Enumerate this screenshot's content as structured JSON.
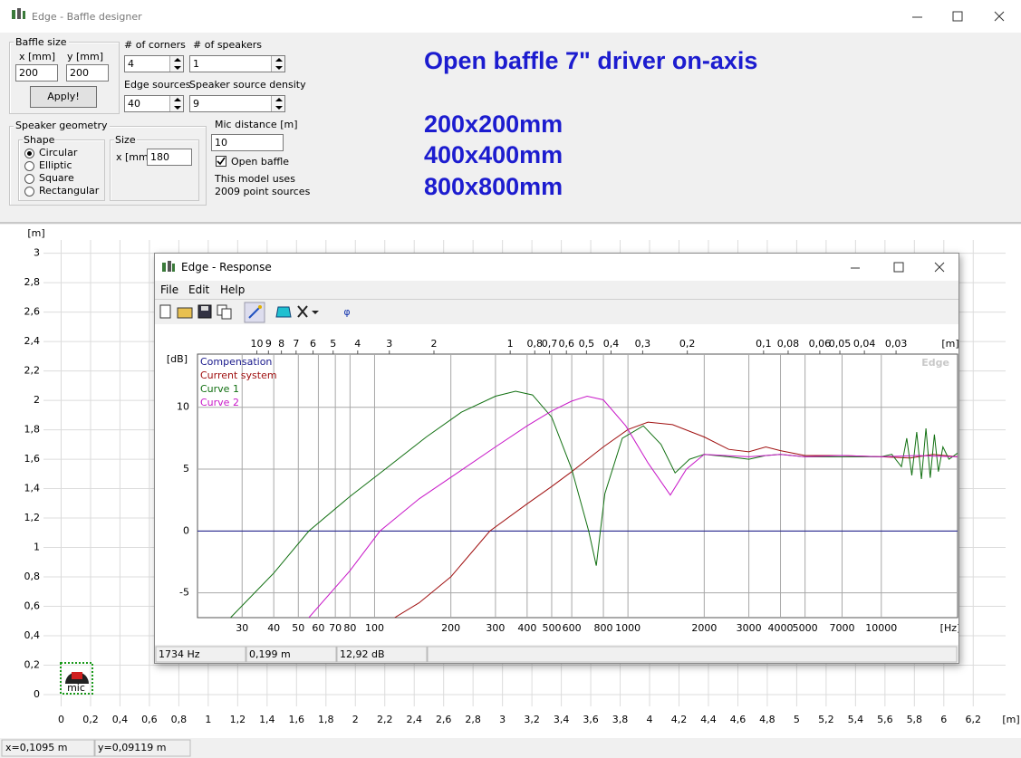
{
  "window": {
    "title": "Edge - Baffle designer"
  },
  "panel": {
    "baffle_size": {
      "label": "Baffle size",
      "x_label": "x [mm]",
      "y_label": "y [mm]",
      "x": 200,
      "y": 200,
      "button": "Apply!"
    },
    "corners": {
      "label": "# of corners",
      "value": 4
    },
    "speakers": {
      "label": "# of speakers",
      "value": 1
    },
    "edge_sources": {
      "label": "Edge sources",
      "value": 40
    },
    "source_density": {
      "label": "Speaker source density",
      "value": 9
    },
    "speaker_geometry": {
      "label": "Speaker geometry",
      "shape_label": "Shape",
      "shapes": [
        {
          "label": "Circular",
          "checked": true
        },
        {
          "label": "Elliptic",
          "checked": false
        },
        {
          "label": "Square",
          "checked": false
        },
        {
          "label": "Rectangular",
          "checked": false
        }
      ],
      "size_label": "Size",
      "size_x_label": "x [mm]",
      "size_x": 180
    },
    "mic_distance": {
      "label": "Mic distance [m]",
      "value": 10
    },
    "open_baffle": {
      "label": "Open baffle",
      "checked": true
    },
    "model_info": [
      "This model uses",
      "2009 point sources"
    ]
  },
  "notes": {
    "heading": "Open baffle 7\" driver on-axis",
    "sizes": [
      "200x200mm",
      "400x400mm",
      "800x800mm"
    ]
  },
  "layout_plot": {
    "xlim": [
      -0.12,
      6.42
    ],
    "ylim": [
      -0.08,
      3.09
    ],
    "xticks": [
      0,
      {
        "value": 0.2,
        "label": "0,2"
      },
      {
        "value": 0.4,
        "label": "0,4"
      },
      {
        "value": 0.6,
        "label": "0,6"
      },
      {
        "value": 0.8,
        "label": "0,8"
      },
      1,
      {
        "value": 1.2,
        "label": "1,2"
      },
      {
        "value": 1.4,
        "label": "1,4"
      },
      {
        "value": 1.6,
        "label": "1,6"
      },
      {
        "value": 1.8,
        "label": "1,8"
      },
      2,
      {
        "value": 2.2,
        "label": "2,2"
      },
      {
        "value": 2.4,
        "label": "2,4"
      },
      {
        "value": 2.6,
        "label": "2,6"
      },
      {
        "value": 2.8,
        "label": "2,8"
      },
      3,
      {
        "value": 3.2,
        "label": "3,2"
      },
      {
        "value": 3.4,
        "label": "3,4"
      },
      {
        "value": 3.6,
        "label": "3,6"
      },
      {
        "value": 3.8,
        "label": "3,8"
      },
      4,
      {
        "value": 4.2,
        "label": "4,2"
      },
      {
        "value": 4.4,
        "label": "4,4"
      },
      {
        "value": 4.6,
        "label": "4,6"
      },
      {
        "value": 4.8,
        "label": "4,8"
      },
      5,
      {
        "value": 5.2,
        "label": "5,2"
      },
      {
        "value": 5.4,
        "label": "5,4"
      },
      {
        "value": 5.6,
        "label": "5,6"
      },
      {
        "value": 5.8,
        "label": "5,8"
      },
      6,
      {
        "value": 6.2,
        "label": "6,2"
      }
    ],
    "yticks": [
      0,
      {
        "value": 0.2,
        "label": "0,2"
      },
      {
        "value": 0.4,
        "label": "0,4"
      },
      {
        "value": 0.6,
        "label": "0,6"
      },
      {
        "value": 0.8,
        "label": "0,8"
      },
      1,
      {
        "value": 1.2,
        "label": "1,2"
      },
      {
        "value": 1.4,
        "label": "1,4"
      },
      {
        "value": 1.6,
        "label": "1,6"
      },
      {
        "value": 1.8,
        "label": "1,8"
      },
      2,
      {
        "value": 2.2,
        "label": "2,2"
      },
      {
        "value": 2.4,
        "label": "2,4"
      },
      {
        "value": 2.6,
        "label": "2,6"
      },
      {
        "value": 2.8,
        "label": "2,8"
      },
      3
    ],
    "x_unit": "[m]",
    "y_unit": "[m]",
    "mic_label": "mic"
  },
  "response_window": {
    "title": "Edge - Response",
    "menu": [
      "File",
      "Edit",
      "Help"
    ],
    "phase_button": "φ",
    "status": [
      "1734 Hz",
      "0,199 m",
      "12,92 dB"
    ]
  },
  "chart_data": {
    "type": "line",
    "x_scale": "log",
    "xlim": [
      20,
      20000
    ],
    "ylim": [
      -7,
      14.3
    ],
    "xticks": [
      30,
      40,
      50,
      60,
      70,
      80,
      100,
      200,
      300,
      400,
      500,
      600,
      800,
      1000,
      2000,
      3000,
      4000,
      5000,
      7000,
      10000
    ],
    "yticks": [
      -5,
      0,
      5,
      10
    ],
    "x2lim": [
      17.15,
      0.01715
    ],
    "x2ticks": [
      10,
      9,
      8,
      7,
      6,
      5,
      4,
      3,
      2,
      1,
      {
        "value": 0.8,
        "label": "0,8"
      },
      {
        "value": 0.7,
        "label": "0,7"
      },
      {
        "value": 0.6,
        "label": "0,6"
      },
      {
        "value": 0.5,
        "label": "0,5"
      },
      {
        "value": 0.4,
        "label": "0,4"
      },
      {
        "value": 0.3,
        "label": "0,3"
      },
      {
        "value": 0.2,
        "label": "0,2"
      },
      {
        "value": 0.1,
        "label": "0,1"
      },
      {
        "value": 0.08,
        "label": "0,08"
      },
      {
        "value": 0.06,
        "label": "0,06"
      },
      {
        "value": 0.05,
        "label": "0,05"
      },
      {
        "value": 0.04,
        "label": "0,04"
      },
      {
        "value": 0.03,
        "label": "0,03"
      }
    ],
    "x_unit": "[Hz]",
    "y_unit": "[dB]",
    "x2_unit": "[m]",
    "watermark": "Edge",
    "grid": true,
    "series": [
      {
        "name": "Compensation",
        "color": "#1a1a8c",
        "x": [
          20,
          20000
        ],
        "values": [
          0,
          0
        ]
      },
      {
        "name": "Current system",
        "color": "#a01010",
        "x": [
          120,
          150,
          200,
          285,
          400,
          500,
          600,
          800,
          1000,
          1200,
          1500,
          2000,
          2500,
          3000,
          3500,
          4000,
          5000,
          7000,
          10000,
          13000,
          16000,
          20000
        ],
        "values": [
          -7,
          -5.8,
          -3.7,
          0,
          2.2,
          3.6,
          4.8,
          6.8,
          8.2,
          8.8,
          8.6,
          7.6,
          6.6,
          6.4,
          6.8,
          6.5,
          6.1,
          6.1,
          6,
          5.9,
          6.2,
          6
        ]
      },
      {
        "name": "Curve 1",
        "color": "#127012",
        "x": [
          27,
          40,
          55,
          80,
          110,
          160,
          220,
          300,
          360,
          420,
          500,
          600,
          700,
          750,
          810,
          950,
          1150,
          1350,
          1535,
          1750,
          2000,
          2500,
          3000,
          3500,
          4000,
          5000,
          7000,
          10000,
          11000,
          12000,
          12600,
          13200,
          13800,
          14400,
          15000,
          15600,
          16200,
          16800,
          17500,
          18500,
          20000
        ],
        "values": [
          -7,
          -3.4,
          0,
          2.8,
          5,
          7.6,
          9.6,
          10.9,
          11.3,
          11,
          9.2,
          5,
          0,
          -2.8,
          3,
          7.5,
          8.5,
          7,
          4.7,
          5.8,
          6.2,
          6,
          5.8,
          6.1,
          6.2,
          6,
          6,
          6,
          6.2,
          5.2,
          7.5,
          4.5,
          8,
          4.2,
          8.3,
          4.3,
          7.8,
          4.8,
          6.8,
          5.8,
          6.3
        ]
      },
      {
        "name": "Curve 2",
        "color": "#c818c8",
        "x": [
          55,
          80,
          105,
          150,
          223,
          300,
          400,
          500,
          600,
          690,
          800,
          980,
          1200,
          1470,
          1700,
          2000,
          3000,
          4000,
          5000,
          7000,
          10000,
          14000,
          20000
        ],
        "values": [
          -7,
          -3.2,
          0,
          2.6,
          5,
          6.8,
          8.5,
          9.7,
          10.5,
          10.9,
          10.6,
          8.5,
          5.5,
          2.9,
          5,
          6.2,
          6,
          6.2,
          6,
          6.1,
          6,
          6.1,
          6
        ]
      }
    ]
  },
  "status_bar": [
    "x=0,1095 m",
    "y=0,09119 m"
  ]
}
